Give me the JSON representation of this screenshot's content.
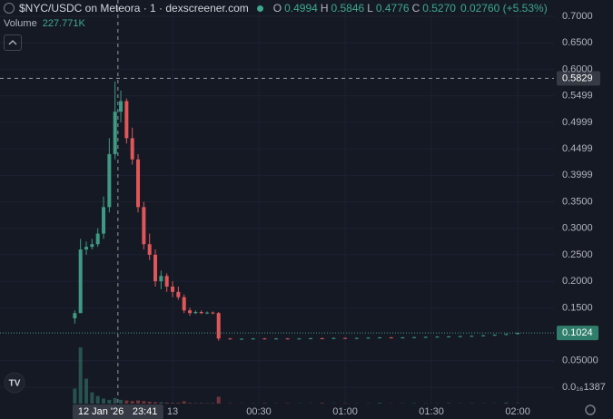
{
  "chart_data": {
    "type": "candlestick",
    "header": {
      "title": "$NYC/USDC on Meteora · 1 · dexscreener.com",
      "ohlc": [
        {
          "key": "O",
          "text": "0.4994"
        },
        {
          "key": "H",
          "text": "0.5846"
        },
        {
          "key": "L",
          "text": "0.4776"
        },
        {
          "key": "C",
          "text": "0.5270"
        }
      ],
      "change": "0.02760 (+5.53%)",
      "volume_label": "Volume",
      "volume_value": "227.771K"
    },
    "up_color": "#3e9a84",
    "down_color": "#e0575a",
    "grid": true,
    "xlim": [
      -60,
      132.6
    ],
    "ylim": [
      -0.0308,
      0.7308
    ],
    "xticks": [
      {
        "value": 0,
        "label": "13"
      },
      {
        "value": 30,
        "label": "00:30"
      },
      {
        "value": 60,
        "label": "01:00"
      },
      {
        "value": 90,
        "label": "01:30"
      },
      {
        "value": 120,
        "label": "02:00"
      }
    ],
    "yticks": [
      {
        "value": 0.7,
        "label": "0.7000"
      },
      {
        "value": 0.65,
        "label": "0.6500"
      },
      {
        "value": 0.6,
        "label": "0.6000"
      },
      {
        "value": 0.5499,
        "label": "0.5499"
      },
      {
        "value": 0.4999,
        "label": "0.4999"
      },
      {
        "value": 0.4499,
        "label": "0.4499"
      },
      {
        "value": 0.3999,
        "label": "0.3999"
      },
      {
        "value": 0.35,
        "label": "0.3500"
      },
      {
        "value": 0.3,
        "label": "0.3000"
      },
      {
        "value": 0.25,
        "label": "0.2500"
      },
      {
        "value": 0.2,
        "label": "0.2000"
      },
      {
        "value": 0.15,
        "label": "0.1500"
      },
      {
        "value": 0.05,
        "label": "0.05000"
      },
      {
        "value": 1.387e-17,
        "label": "0.0₁₆1387"
      }
    ],
    "x": [
      -34,
      -32,
      -30,
      -28,
      -26,
      -24,
      -22,
      -20,
      -18,
      -16,
      -14,
      -12,
      -10,
      -8,
      -6,
      -4,
      -2,
      0,
      2,
      4,
      6,
      8,
      10,
      12,
      14,
      16,
      20,
      24,
      28,
      32,
      36,
      40,
      44,
      48,
      52,
      56,
      60,
      64,
      68,
      72,
      76,
      80,
      84,
      88,
      92,
      96,
      100,
      104,
      108,
      112,
      116,
      120
    ],
    "open": [
      0.13,
      0.14,
      0.26,
      0.265,
      0.27,
      0.29,
      0.34,
      0.44,
      0.52,
      0.54,
      0.47,
      0.43,
      0.34,
      0.27,
      0.25,
      0.2,
      0.21,
      0.19,
      0.18,
      0.17,
      0.145,
      0.14,
      0.142,
      0.14,
      0.141,
      0.14,
      0.092,
      0.091,
      0.0915,
      0.092,
      0.0915,
      0.092,
      0.0915,
      0.092,
      0.0925,
      0.092,
      0.093,
      0.0925,
      0.093,
      0.0935,
      0.094,
      0.0935,
      0.094,
      0.0945,
      0.095,
      0.0955,
      0.096,
      0.0965,
      0.097,
      0.098,
      0.099,
      0.1005
    ],
    "high": [
      0.145,
      0.28,
      0.275,
      0.28,
      0.3,
      0.36,
      0.47,
      0.577,
      0.56,
      0.545,
      0.49,
      0.44,
      0.35,
      0.29,
      0.26,
      0.22,
      0.215,
      0.2,
      0.19,
      0.175,
      0.15,
      0.145,
      0.145,
      0.143,
      0.143,
      0.142,
      0.0928,
      0.0923,
      0.0928,
      0.0928,
      0.0928,
      0.0928,
      0.0928,
      0.0933,
      0.0933,
      0.0938,
      0.0938,
      0.0938,
      0.0943,
      0.0948,
      0.0948,
      0.0948,
      0.0953,
      0.0958,
      0.0963,
      0.0968,
      0.0973,
      0.0978,
      0.0988,
      0.0998,
      0.1013,
      0.1032
    ],
    "low": [
      0.12,
      0.14,
      0.25,
      0.26,
      0.265,
      0.28,
      0.33,
      0.43,
      0.5,
      0.46,
      0.42,
      0.33,
      0.26,
      0.24,
      0.19,
      0.185,
      0.18,
      0.17,
      0.165,
      0.14,
      0.135,
      0.138,
      0.138,
      0.138,
      0.138,
      0.088,
      0.0902,
      0.0902,
      0.0907,
      0.0907,
      0.0907,
      0.0907,
      0.0907,
      0.0912,
      0.0912,
      0.0912,
      0.0917,
      0.0917,
      0.0922,
      0.0927,
      0.0927,
      0.0927,
      0.0932,
      0.0937,
      0.0942,
      0.0947,
      0.0952,
      0.0957,
      0.0962,
      0.0972,
      0.0982,
      0.0997
    ],
    "close": [
      0.14,
      0.26,
      0.265,
      0.27,
      0.29,
      0.34,
      0.44,
      0.52,
      0.54,
      0.47,
      0.43,
      0.34,
      0.27,
      0.25,
      0.2,
      0.21,
      0.19,
      0.18,
      0.17,
      0.145,
      0.14,
      0.142,
      0.14,
      0.141,
      0.14,
      0.092,
      0.091,
      0.0915,
      0.092,
      0.0915,
      0.092,
      0.0915,
      0.092,
      0.0925,
      0.092,
      0.093,
      0.0925,
      0.093,
      0.0935,
      0.094,
      0.0935,
      0.094,
      0.0945,
      0.095,
      0.0955,
      0.096,
      0.0965,
      0.097,
      0.098,
      0.099,
      0.1005,
      0.1024
    ],
    "volume": [
      120,
      450,
      200,
      90,
      60,
      40,
      30,
      45,
      30,
      25,
      20,
      25,
      20,
      15,
      12,
      10,
      8,
      6,
      6,
      18,
      5,
      4,
      4,
      3,
      4,
      55,
      3,
      2,
      2,
      4,
      2,
      3,
      2,
      2,
      5,
      2,
      3,
      2,
      2,
      6,
      2,
      2,
      3,
      2,
      2,
      4,
      2,
      3,
      2,
      2,
      8,
      3
    ],
    "last_price": 0.1024,
    "crosshair": {
      "x": -19,
      "price": 0.5829,
      "date": "12 Jan '26",
      "time": "23:41"
    }
  }
}
